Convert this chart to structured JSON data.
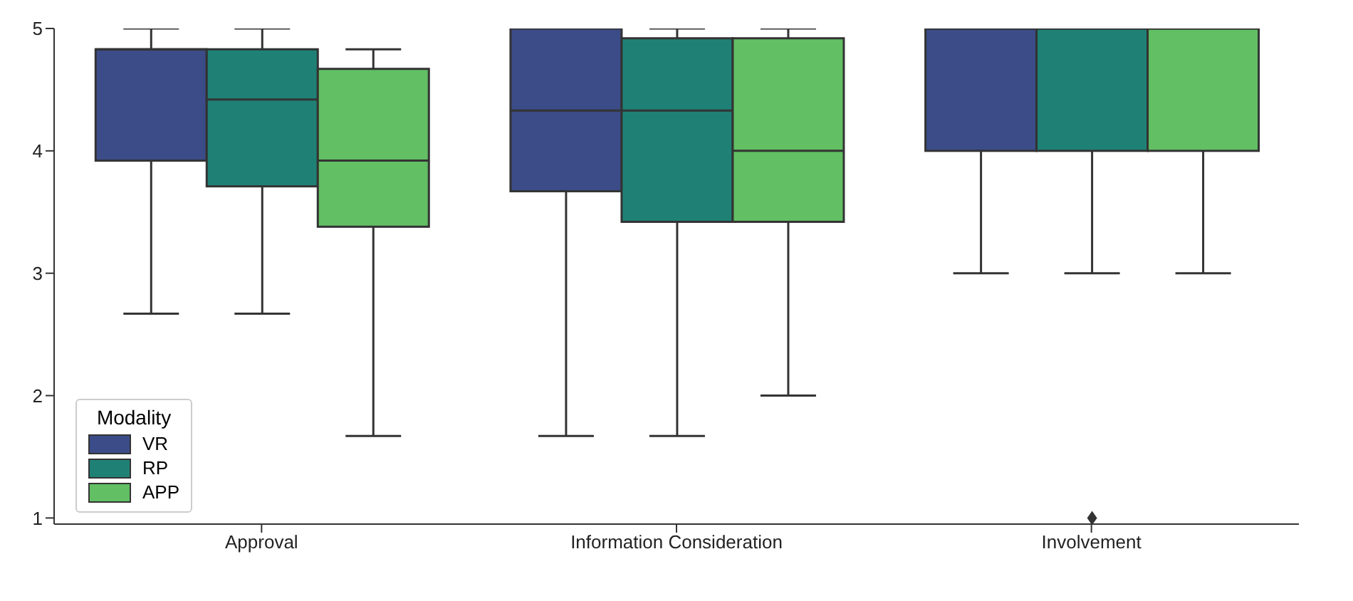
{
  "chart_data": {
    "type": "box",
    "categories": [
      "Approval",
      "Information Consideration",
      "Involvement"
    ],
    "series": [
      {
        "name": "VR",
        "color": "#3b4c88",
        "boxes": [
          {
            "low": 2.67,
            "q1": 3.92,
            "median": 4.83,
            "q3": 4.83,
            "high": 5
          },
          {
            "low": 1.67,
            "q1": 3.67,
            "median": 4.33,
            "q3": 5,
            "high": 5
          },
          {
            "low": 3,
            "q1": 4,
            "median": 5,
            "q3": 5,
            "high": 5
          }
        ]
      },
      {
        "name": "RP",
        "color": "#1f8176",
        "boxes": [
          {
            "low": 2.67,
            "q1": 3.71,
            "median": 4.42,
            "q3": 4.83,
            "high": 5
          },
          {
            "low": 1.67,
            "q1": 3.42,
            "median": 4.33,
            "q3": 4.92,
            "high": 5
          },
          {
            "low": 3,
            "q1": 4,
            "median": 5,
            "q3": 5,
            "high": 5,
            "outliers": [
              1
            ]
          }
        ]
      },
      {
        "name": "APP",
        "color": "#62bf64",
        "boxes": [
          {
            "low": 1.67,
            "q1": 3.38,
            "median": 3.92,
            "q3": 4.67,
            "high": 4.83
          },
          {
            "low": 2,
            "q1": 3.42,
            "median": 4,
            "q3": 4.92,
            "high": 5
          },
          {
            "low": 3,
            "q1": 4,
            "median": 5,
            "q3": 5,
            "high": 5
          }
        ]
      }
    ],
    "ylim": [
      0.95,
      5
    ],
    "yticks": [
      1,
      2,
      3,
      4,
      5
    ],
    "grid": false,
    "legend": "bottom left",
    "legend_title": "Modality"
  }
}
